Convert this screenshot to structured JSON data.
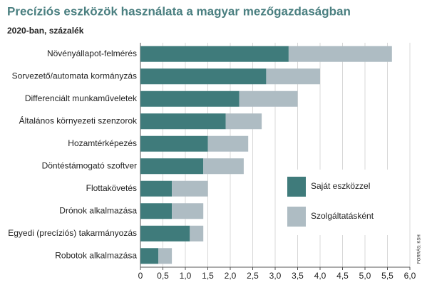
{
  "chart_data": {
    "type": "stacked-bar-horizontal",
    "title": "Precíziós eszközök használata a magyar mezőgazdaságban",
    "subtitle": "2020-ban, százalék",
    "source": "FORRÁS: KSH",
    "categories": [
      "Növényállapot-felmérés",
      "Sorvezető/automata kormányzás",
      "Differenciált munkaműveletek",
      "Általános környezeti szenzorok",
      "Hozamtérképezés",
      "Döntéstámogató szoftver",
      "Flottakövetés",
      "Drónok alkalmazása",
      "Egyedi (precíziós) takarmányozás",
      "Robotok alkalmazása"
    ],
    "series": [
      {
        "name": "Saját eszközzel",
        "color": "#3f7b7b",
        "values": [
          3.3,
          2.8,
          2.2,
          1.9,
          1.5,
          1.4,
          0.7,
          0.7,
          1.1,
          0.4
        ]
      },
      {
        "name": "Szolgáltatásként",
        "color": "#aebcc3",
        "values": [
          2.3,
          1.2,
          1.3,
          0.8,
          0.9,
          0.9,
          0.8,
          0.7,
          0.3,
          0.3
        ]
      }
    ],
    "xlim": [
      0,
      6
    ],
    "xticks": [
      0,
      {
        "value": 0.5,
        "label": "0,5"
      },
      {
        "value": 1,
        "label": "1,0"
      },
      {
        "value": 1.5,
        "label": "1,5"
      },
      {
        "value": 2,
        "label": "2,0"
      },
      {
        "value": 2.5,
        "label": "2,5"
      },
      {
        "value": 3,
        "label": "3,0"
      },
      {
        "value": 3.5,
        "label": "3,5"
      },
      {
        "value": 4,
        "label": "4,0"
      },
      {
        "value": 4.5,
        "label": "4,5"
      },
      {
        "value": 5,
        "label": "5,0"
      },
      {
        "value": 5.5,
        "label": "5,5"
      },
      {
        "value": 6,
        "label": "6,0"
      }
    ],
    "grid": true
  }
}
